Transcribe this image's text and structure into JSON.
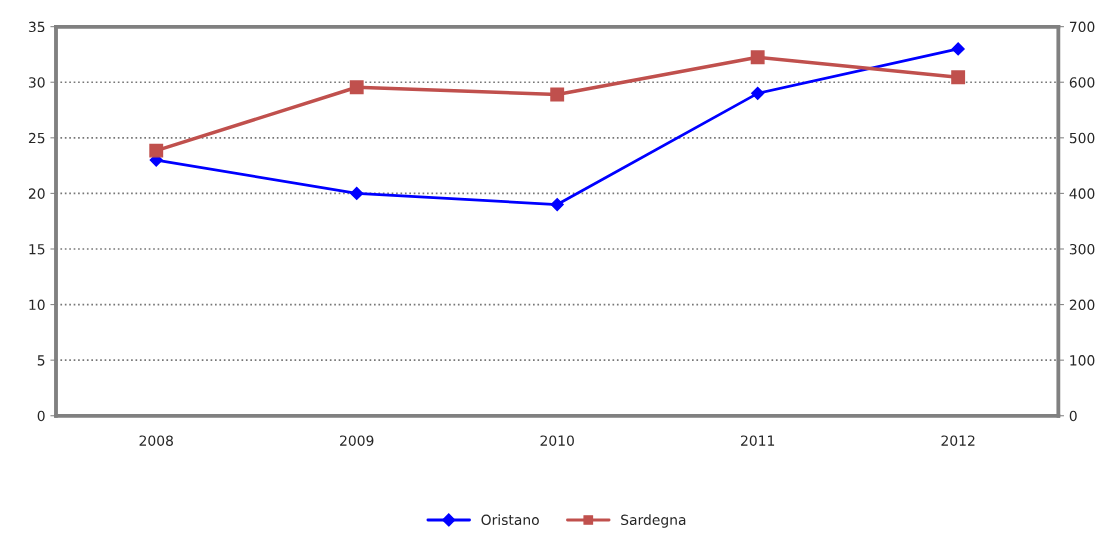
{
  "chart_data": {
    "type": "line",
    "categories": [
      "2008",
      "2009",
      "2010",
      "2011",
      "2012"
    ],
    "series": [
      {
        "name": "Oristano",
        "color": "#0000ff",
        "marker": "diamond",
        "values": [
          23,
          20,
          19,
          29,
          33
        ]
      },
      {
        "name": "Sardegna",
        "color": "#c0504d",
        "marker": "square",
        "axis": "y2",
        "values": [
          477,
          591,
          578,
          645,
          609
        ]
      }
    ],
    "ylim": [
      0,
      35
    ],
    "yticks": [
      0,
      5,
      10,
      15,
      20,
      25,
      30,
      35
    ],
    "y2lim": [
      0,
      700
    ],
    "y2ticks": [
      0,
      100,
      200,
      300,
      400,
      500,
      600,
      700
    ],
    "grid": "y",
    "legend": "bottom"
  }
}
